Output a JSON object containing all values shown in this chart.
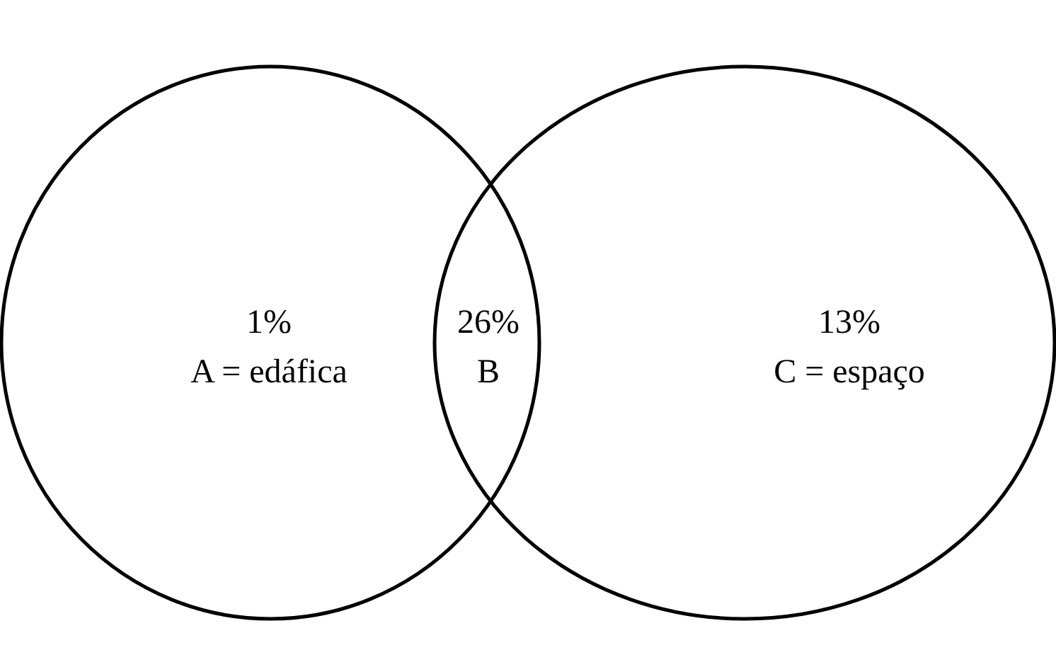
{
  "chart_data": {
    "type": "other",
    "categories": [
      "A = edáfica",
      "B",
      "C = espaço"
    ],
    "values": [
      1,
      26,
      13
    ],
    "value_labels": [
      "1%",
      "26%",
      "13%"
    ]
  }
}
